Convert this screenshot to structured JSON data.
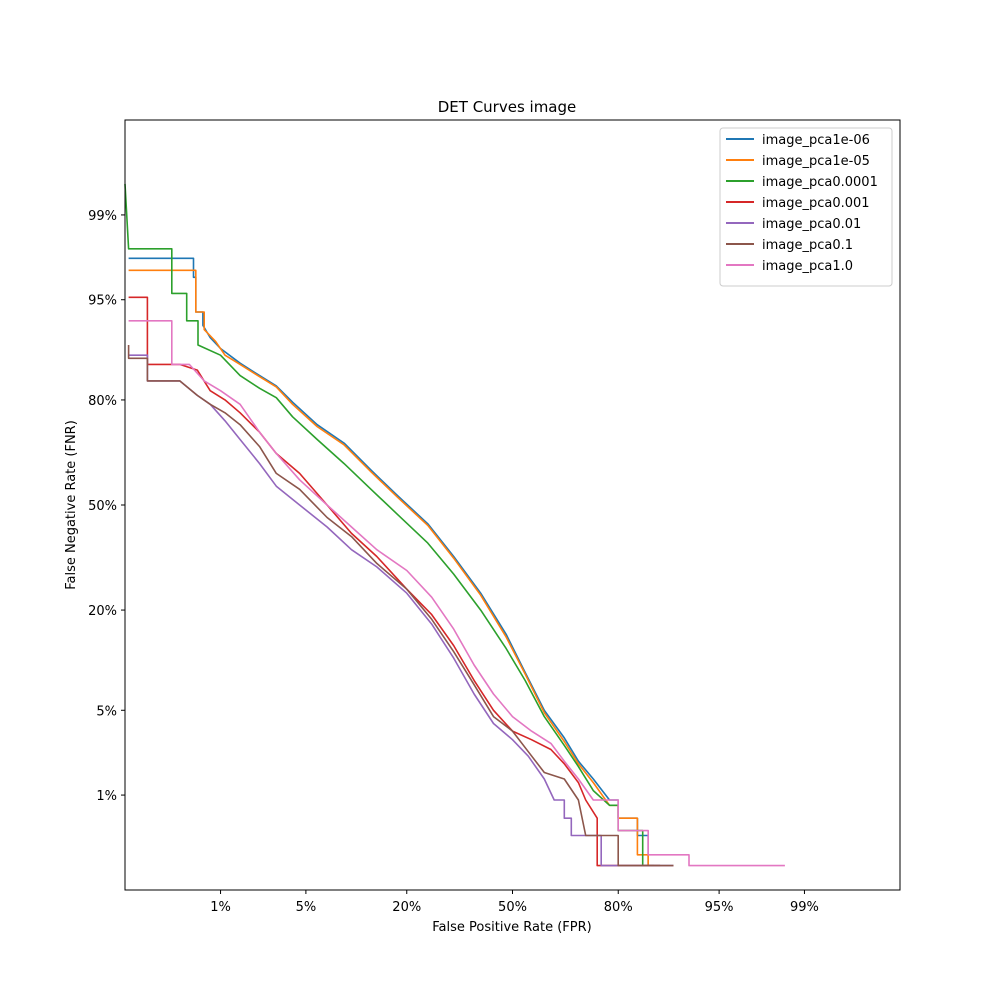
{
  "chart_data": {
    "type": "line",
    "title": "DET Curves image",
    "xlabel": "False Positive Rate (FPR)",
    "ylabel": "False Negative Rate (FNR)",
    "scale": "normal-deviate (probit)",
    "xlim": [
      0.001,
      0.999
    ],
    "ylim": [
      0.001,
      0.999
    ],
    "xticks": [
      {
        "value": 0.01,
        "label": "1%"
      },
      {
        "value": 0.05,
        "label": "5%"
      },
      {
        "value": 0.2,
        "label": "20%"
      },
      {
        "value": 0.5,
        "label": "50%"
      },
      {
        "value": 0.8,
        "label": "80%"
      },
      {
        "value": 0.95,
        "label": "95%"
      },
      {
        "value": 0.99,
        "label": "99%"
      }
    ],
    "yticks": [
      {
        "value": 0.01,
        "label": "1%"
      },
      {
        "value": 0.05,
        "label": "5%"
      },
      {
        "value": 0.2,
        "label": "20%"
      },
      {
        "value": 0.5,
        "label": "50%"
      },
      {
        "value": 0.8,
        "label": "80%"
      },
      {
        "value": 0.95,
        "label": "95%"
      },
      {
        "value": 0.99,
        "label": "99%"
      }
    ],
    "grid": false,
    "legend_position": "top-right",
    "series": [
      {
        "name": "image_pca1e-06",
        "color": "#1f77b4",
        "points": [
          [
            0.0011,
            0.976
          ],
          [
            0.0055,
            0.976
          ],
          [
            0.0055,
            0.966
          ],
          [
            0.0058,
            0.966
          ],
          [
            0.0058,
            0.939
          ],
          [
            0.0068,
            0.939
          ],
          [
            0.0068,
            0.925
          ],
          [
            0.008,
            0.91
          ],
          [
            0.01,
            0.895
          ],
          [
            0.015,
            0.872
          ],
          [
            0.022,
            0.85
          ],
          [
            0.03,
            0.83
          ],
          [
            0.04,
            0.795
          ],
          [
            0.06,
            0.74
          ],
          [
            0.09,
            0.69
          ],
          [
            0.13,
            0.61
          ],
          [
            0.18,
            0.53
          ],
          [
            0.25,
            0.44
          ],
          [
            0.32,
            0.34
          ],
          [
            0.4,
            0.24
          ],
          [
            0.48,
            0.15
          ],
          [
            0.54,
            0.09
          ],
          [
            0.6,
            0.05
          ],
          [
            0.66,
            0.031
          ],
          [
            0.7,
            0.02
          ],
          [
            0.74,
            0.014
          ],
          [
            0.78,
            0.009
          ],
          [
            0.8,
            0.009
          ],
          [
            0.8,
            0.006
          ],
          [
            0.84,
            0.006
          ],
          [
            0.84,
            0.004
          ],
          [
            0.86,
            0.004
          ],
          [
            0.86,
            0.0019
          ],
          [
            0.87,
            0.0019
          ]
        ]
      },
      {
        "name": "image_pca1e-05",
        "color": "#ff7f0e",
        "points": [
          [
            0.0011,
            0.97
          ],
          [
            0.0058,
            0.97
          ],
          [
            0.0058,
            0.939
          ],
          [
            0.007,
            0.939
          ],
          [
            0.007,
            0.92
          ],
          [
            0.009,
            0.905
          ],
          [
            0.011,
            0.885
          ],
          [
            0.015,
            0.87
          ],
          [
            0.022,
            0.848
          ],
          [
            0.03,
            0.828
          ],
          [
            0.04,
            0.79
          ],
          [
            0.06,
            0.735
          ],
          [
            0.09,
            0.685
          ],
          [
            0.13,
            0.605
          ],
          [
            0.18,
            0.525
          ],
          [
            0.25,
            0.435
          ],
          [
            0.32,
            0.335
          ],
          [
            0.4,
            0.235
          ],
          [
            0.48,
            0.145
          ],
          [
            0.54,
            0.088
          ],
          [
            0.6,
            0.048
          ],
          [
            0.66,
            0.029
          ],
          [
            0.7,
            0.019
          ],
          [
            0.74,
            0.013
          ],
          [
            0.78,
            0.008
          ],
          [
            0.8,
            0.008
          ],
          [
            0.8,
            0.006
          ],
          [
            0.84,
            0.006
          ],
          [
            0.84,
            0.0025
          ],
          [
            0.86,
            0.0025
          ],
          [
            0.86,
            0.0019
          ],
          [
            0.866,
            0.0019
          ]
        ]
      },
      {
        "name": "image_pca0.0001",
        "color": "#2ca02c",
        "points": [
          [
            0.001,
            0.995
          ],
          [
            0.0011,
            0.98
          ],
          [
            0.0033,
            0.98
          ],
          [
            0.0033,
            0.955
          ],
          [
            0.0047,
            0.955
          ],
          [
            0.0047,
            0.93
          ],
          [
            0.0061,
            0.93
          ],
          [
            0.0061,
            0.9
          ],
          [
            0.01,
            0.885
          ],
          [
            0.015,
            0.85
          ],
          [
            0.022,
            0.825
          ],
          [
            0.03,
            0.805
          ],
          [
            0.04,
            0.76
          ],
          [
            0.06,
            0.7
          ],
          [
            0.09,
            0.63
          ],
          [
            0.13,
            0.55
          ],
          [
            0.18,
            0.47
          ],
          [
            0.25,
            0.38
          ],
          [
            0.32,
            0.29
          ],
          [
            0.4,
            0.2
          ],
          [
            0.48,
            0.125
          ],
          [
            0.54,
            0.08
          ],
          [
            0.6,
            0.045
          ],
          [
            0.66,
            0.027
          ],
          [
            0.7,
            0.018
          ],
          [
            0.74,
            0.011
          ],
          [
            0.78,
            0.008
          ],
          [
            0.8,
            0.008
          ],
          [
            0.8,
            0.0045
          ],
          [
            0.85,
            0.0045
          ],
          [
            0.85,
            0.0019
          ],
          [
            0.88,
            0.0019
          ]
        ]
      },
      {
        "name": "image_pca0.001",
        "color": "#d62728",
        "points": [
          [
            0.0011,
            0.952
          ],
          [
            0.0018,
            0.952
          ],
          [
            0.0018,
            0.87
          ],
          [
            0.004,
            0.87
          ],
          [
            0.006,
            0.86
          ],
          [
            0.008,
            0.82
          ],
          [
            0.011,
            0.8
          ],
          [
            0.015,
            0.77
          ],
          [
            0.022,
            0.72
          ],
          [
            0.03,
            0.66
          ],
          [
            0.045,
            0.6
          ],
          [
            0.07,
            0.5
          ],
          [
            0.1,
            0.41
          ],
          [
            0.14,
            0.34
          ],
          [
            0.2,
            0.25
          ],
          [
            0.26,
            0.19
          ],
          [
            0.32,
            0.13
          ],
          [
            0.38,
            0.08
          ],
          [
            0.44,
            0.05
          ],
          [
            0.5,
            0.035
          ],
          [
            0.56,
            0.03
          ],
          [
            0.62,
            0.025
          ],
          [
            0.66,
            0.019
          ],
          [
            0.7,
            0.013
          ],
          [
            0.72,
            0.009
          ],
          [
            0.75,
            0.006
          ],
          [
            0.75,
            0.0019
          ],
          [
            0.88,
            0.0019
          ]
        ]
      },
      {
        "name": "image_pca0.01",
        "color": "#9467bd",
        "points": [
          [
            0.0011,
            0.885
          ],
          [
            0.0018,
            0.885
          ],
          [
            0.0018,
            0.84
          ],
          [
            0.004,
            0.84
          ],
          [
            0.006,
            0.81
          ],
          [
            0.008,
            0.79
          ],
          [
            0.011,
            0.75
          ],
          [
            0.015,
            0.7
          ],
          [
            0.022,
            0.63
          ],
          [
            0.03,
            0.56
          ],
          [
            0.045,
            0.5
          ],
          [
            0.07,
            0.43
          ],
          [
            0.1,
            0.36
          ],
          [
            0.14,
            0.31
          ],
          [
            0.2,
            0.24
          ],
          [
            0.26,
            0.17
          ],
          [
            0.32,
            0.11
          ],
          [
            0.38,
            0.065
          ],
          [
            0.44,
            0.04
          ],
          [
            0.5,
            0.03
          ],
          [
            0.55,
            0.022
          ],
          [
            0.6,
            0.014
          ],
          [
            0.63,
            0.009
          ],
          [
            0.66,
            0.009
          ],
          [
            0.66,
            0.006
          ],
          [
            0.68,
            0.006
          ],
          [
            0.68,
            0.004
          ],
          [
            0.72,
            0.004
          ],
          [
            0.76,
            0.004
          ],
          [
            0.76,
            0.0019
          ],
          [
            0.9,
            0.0019
          ]
        ]
      },
      {
        "name": "image_pca0.1",
        "color": "#8c564b",
        "points": [
          [
            0.0011,
            0.9
          ],
          [
            0.0011,
            0.88
          ],
          [
            0.0018,
            0.88
          ],
          [
            0.0018,
            0.84
          ],
          [
            0.004,
            0.84
          ],
          [
            0.006,
            0.81
          ],
          [
            0.008,
            0.79
          ],
          [
            0.011,
            0.77
          ],
          [
            0.015,
            0.74
          ],
          [
            0.022,
            0.68
          ],
          [
            0.03,
            0.6
          ],
          [
            0.045,
            0.55
          ],
          [
            0.07,
            0.46
          ],
          [
            0.1,
            0.4
          ],
          [
            0.14,
            0.32
          ],
          [
            0.2,
            0.25
          ],
          [
            0.26,
            0.18
          ],
          [
            0.32,
            0.12
          ],
          [
            0.38,
            0.075
          ],
          [
            0.44,
            0.045
          ],
          [
            0.5,
            0.035
          ],
          [
            0.55,
            0.024
          ],
          [
            0.6,
            0.016
          ],
          [
            0.66,
            0.014
          ],
          [
            0.7,
            0.009
          ],
          [
            0.72,
            0.004
          ],
          [
            0.8,
            0.004
          ],
          [
            0.8,
            0.0019
          ],
          [
            0.9,
            0.0019
          ]
        ]
      },
      {
        "name": "image_pca1.0",
        "color": "#e377c2",
        "points": [
          [
            0.0011,
            0.93
          ],
          [
            0.0033,
            0.93
          ],
          [
            0.0033,
            0.87
          ],
          [
            0.005,
            0.87
          ],
          [
            0.007,
            0.84
          ],
          [
            0.01,
            0.82
          ],
          [
            0.015,
            0.79
          ],
          [
            0.022,
            0.72
          ],
          [
            0.03,
            0.66
          ],
          [
            0.045,
            0.58
          ],
          [
            0.07,
            0.5
          ],
          [
            0.1,
            0.43
          ],
          [
            0.14,
            0.36
          ],
          [
            0.2,
            0.3
          ],
          [
            0.26,
            0.23
          ],
          [
            0.32,
            0.16
          ],
          [
            0.38,
            0.1
          ],
          [
            0.44,
            0.065
          ],
          [
            0.5,
            0.045
          ],
          [
            0.56,
            0.035
          ],
          [
            0.62,
            0.028
          ],
          [
            0.66,
            0.02
          ],
          [
            0.7,
            0.014
          ],
          [
            0.74,
            0.009
          ],
          [
            0.8,
            0.009
          ],
          [
            0.8,
            0.0045
          ],
          [
            0.86,
            0.0045
          ],
          [
            0.86,
            0.0025
          ],
          [
            0.92,
            0.0025
          ],
          [
            0.92,
            0.0019
          ],
          [
            0.95,
            0.0019
          ],
          [
            0.985,
            0.0019
          ]
        ]
      }
    ]
  }
}
